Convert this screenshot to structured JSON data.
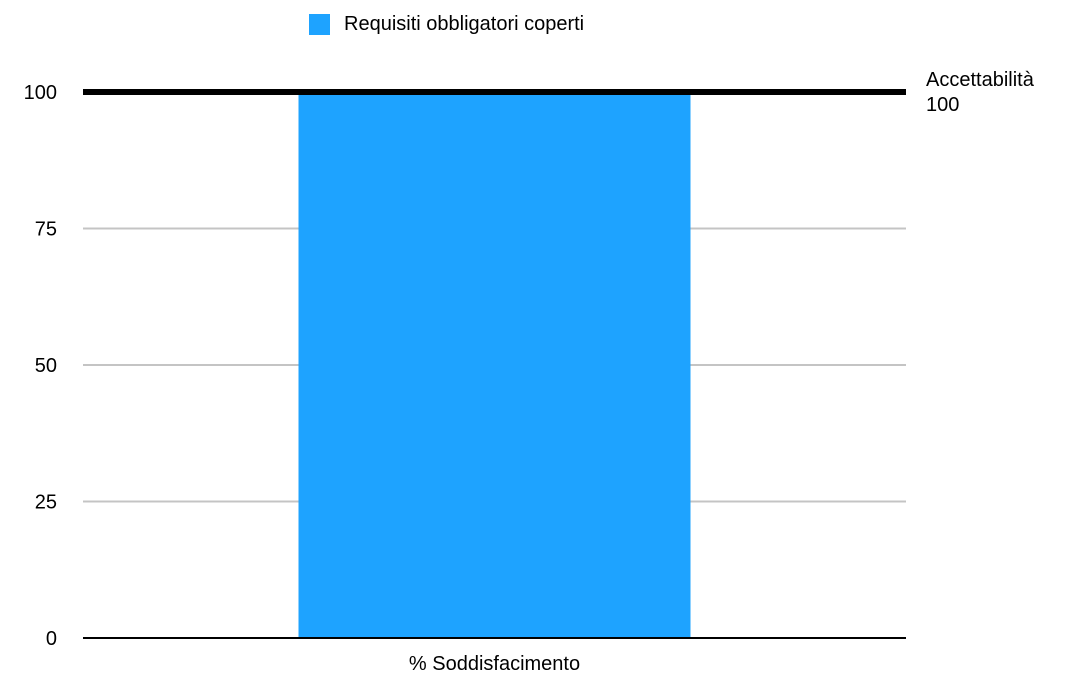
{
  "chart_data": {
    "type": "bar",
    "categories": [
      "% Soddisfacimento"
    ],
    "series": [
      {
        "name": "Requisiti obbligatori coperti",
        "values": [
          100
        ],
        "color": "#1ea3ff"
      }
    ],
    "ylim": [
      0,
      100
    ],
    "yticks": [
      0,
      25,
      50,
      75,
      100
    ],
    "grid": true,
    "legend_position": "top",
    "reference_line": {
      "name": "Accettabilità",
      "value": 100,
      "label_value": "100",
      "color": "#000000"
    }
  }
}
